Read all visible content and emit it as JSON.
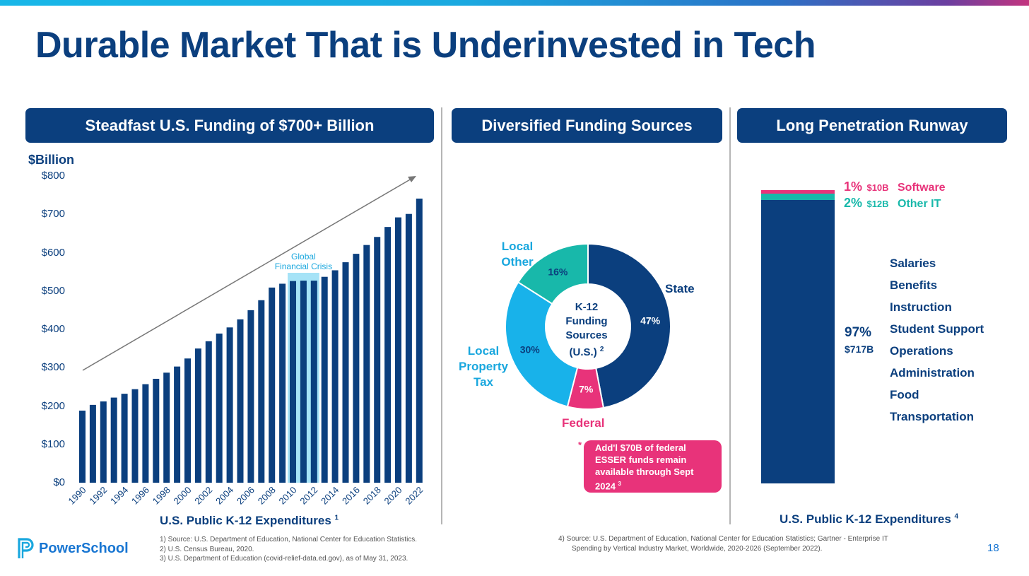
{
  "slide": {
    "title": "Durable Market That is Underinvested in Tech",
    "page_number": "18",
    "logo_text": "PowerSchool"
  },
  "panels": {
    "left_title": "Steadfast U.S. Funding of $700+ Billion",
    "middle_title": "Diversified Funding Sources",
    "right_title": "Long Penetration Runway"
  },
  "bar_chart": {
    "unit_label": "$Billion",
    "annotation": [
      "Global",
      "Financial Crisis"
    ],
    "caption": "U.S. Public K-12 Expenditures",
    "caption_sup": "1"
  },
  "donut": {
    "center_lines": [
      "K-12",
      "Funding",
      "Sources",
      "(U.S.)"
    ],
    "center_sup": "2",
    "labels": {
      "state": "State",
      "federal": "Federal",
      "local_other": [
        "Local",
        "Other"
      ],
      "local_property_tax": [
        "Local",
        "Property",
        "Tax"
      ]
    },
    "note_star": "*",
    "note": [
      "Add'l $70B of federal",
      "ESSER funds remain",
      "available through Sept",
      "2024"
    ],
    "note_sup": "3"
  },
  "runway": {
    "software_pct": "1%",
    "software_amount": "$10B",
    "software_label": "Software",
    "other_it_pct": "2%",
    "other_it_amount": "$12B",
    "other_it_label": "Other IT",
    "main_pct": "97%",
    "main_amount": "$717B",
    "categories": [
      "Salaries",
      "Benefits",
      "Instruction",
      "Student Support",
      "Operations",
      "Administration",
      "Food",
      "Transportation"
    ],
    "caption": "U.S. Public K-12 Expenditures",
    "caption_sup": "4"
  },
  "footnotes_left": [
    "1)    Source: U.S. Department of Education, National Center for Education Statistics.",
    "2)    U.S. Census Bureau, 2020.",
    "3)    U.S. Department of Education (covid-relief-data.ed.gov), as of May 31, 2023."
  ],
  "footnote_right": [
    "4)    Source: U.S. Department of Education, National Center for Education Statistics; Gartner - Enterprise IT",
    "Spending by Vertical Industry Market, Worldwide, 2020-2026 (September 2022)."
  ],
  "colors": {
    "navy": "#0b3f7e",
    "pink": "#e8337a",
    "teal": "#18b8aa",
    "sky": "#18b2ea",
    "highlight": "#a6e3f7"
  },
  "chart_data": [
    {
      "type": "bar",
      "title": "Steadfast U.S. Funding of $700+ Billion",
      "ylabel": "$Billion",
      "xlabel": "U.S. Public K-12 Expenditures",
      "ylim": [
        0,
        800
      ],
      "yticks": [
        "$0",
        "$100",
        "$200",
        "$300",
        "$400",
        "$500",
        "$600",
        "$700",
        "$800"
      ],
      "x_tick_labels": [
        "1990",
        "1992",
        "1994",
        "1996",
        "1998",
        "2000",
        "2002",
        "2004",
        "2006",
        "2008",
        "2010",
        "2012",
        "2014",
        "2016",
        "2018",
        "2020",
        "2022"
      ],
      "categories": [
        "1990",
        "1991",
        "1992",
        "1993",
        "1994",
        "1995",
        "1996",
        "1997",
        "1998",
        "1999",
        "2000",
        "2001",
        "2002",
        "2003",
        "2004",
        "2005",
        "2006",
        "2007",
        "2008",
        "2009",
        "2010",
        "2011",
        "2012",
        "2013",
        "2014",
        "2015",
        "2016",
        "2017",
        "2018",
        "2019",
        "2020",
        "2021",
        "2022"
      ],
      "values": [
        188,
        203,
        212,
        222,
        232,
        244,
        257,
        271,
        287,
        303,
        324,
        350,
        369,
        389,
        405,
        426,
        450,
        476,
        509,
        519,
        526,
        527,
        527,
        537,
        554,
        575,
        597,
        620,
        641,
        667,
        692,
        701,
        741
      ],
      "highlight_range": [
        "2010",
        "2012"
      ],
      "highlight_label": "Global Financial Crisis",
      "trend_arrow": true
    },
    {
      "type": "pie",
      "title": "K-12 Funding Sources (U.S.)",
      "labels": [
        "State",
        "Federal",
        "Local Property Tax",
        "Local Other"
      ],
      "values": [
        47,
        7,
        30,
        16
      ],
      "value_labels": [
        "47%",
        "7%",
        "30%",
        "16%"
      ],
      "colors": [
        "#0b3f7e",
        "#e8337a",
        "#18b2ea",
        "#18b8aa"
      ]
    },
    {
      "type": "bar",
      "title": "Long Penetration Runway",
      "stacked": true,
      "categories": [
        "U.S. Public K-12 Expenditures"
      ],
      "series": [
        {
          "name": "Salaries, Benefits, Instruction, etc.",
          "percent": 97,
          "value_billion": 717
        },
        {
          "name": "Other IT",
          "percent": 2,
          "value_billion": 12
        },
        {
          "name": "Software",
          "percent": 1,
          "value_billion": 10
        }
      ]
    }
  ]
}
